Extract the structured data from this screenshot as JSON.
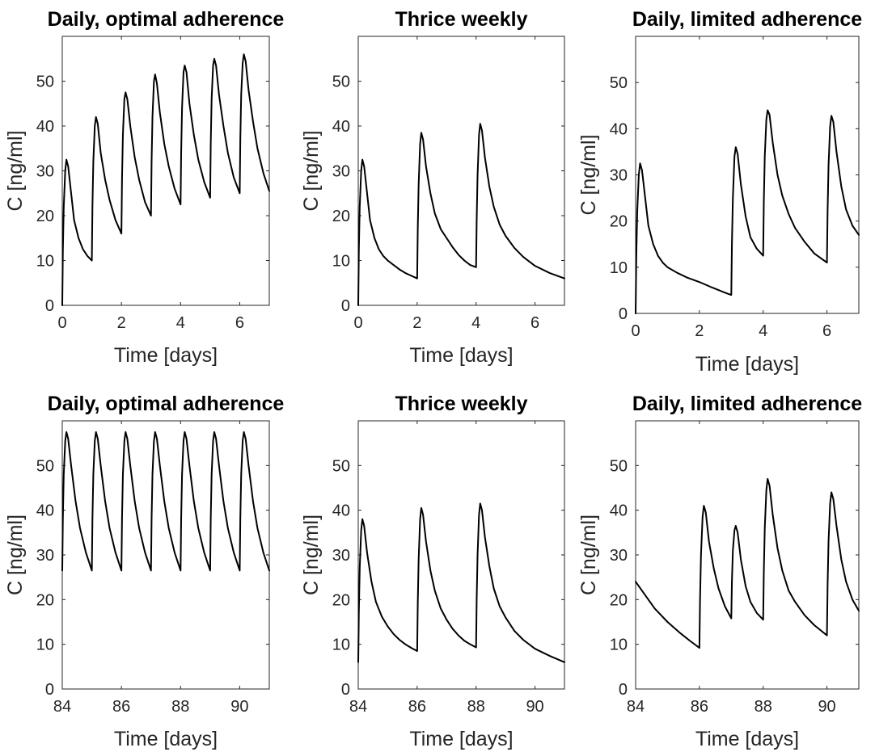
{
  "chart_data": [
    {
      "type": "line",
      "title": "Daily, optimal adherence",
      "xlabel": "Time [days]",
      "ylabel": "C [ng/ml]",
      "xlim": [
        0,
        7
      ],
      "ylim": [
        0,
        60
      ],
      "xticks": [
        "0",
        "2",
        "4",
        "6"
      ],
      "yticks": [
        "0",
        "10",
        "20",
        "30",
        "40",
        "50"
      ],
      "grid": false,
      "series": [
        {
          "x": [
            0,
            0.02,
            0.05,
            0.1,
            0.14,
            0.2,
            0.3,
            0.4,
            0.55,
            0.7,
            0.85,
            1.0,
            1.02,
            1.05,
            1.1,
            1.14,
            1.2,
            1.3,
            1.45,
            1.6,
            1.8,
            2.0,
            2.02,
            2.05,
            2.1,
            2.14,
            2.2,
            2.3,
            2.45,
            2.6,
            2.8,
            3.0,
            3.02,
            3.05,
            3.1,
            3.14,
            3.2,
            3.3,
            3.45,
            3.6,
            3.8,
            4.0,
            4.02,
            4.05,
            4.1,
            4.14,
            4.2,
            4.3,
            4.45,
            4.6,
            4.8,
            5.0,
            5.02,
            5.05,
            5.1,
            5.14,
            5.2,
            5.3,
            5.45,
            5.6,
            5.8,
            6.0,
            6.02,
            6.05,
            6.1,
            6.14,
            6.2,
            6.3,
            6.45,
            6.6,
            6.8,
            7.0
          ],
          "y": [
            0,
            12,
            22,
            30,
            32.5,
            31,
            25,
            19,
            15,
            12.5,
            11,
            10,
            22,
            32,
            40,
            42,
            40.5,
            34,
            28,
            23.5,
            19,
            16,
            28,
            38,
            46,
            47.5,
            46,
            40,
            33,
            28,
            23,
            20,
            32,
            42,
            50,
            51.5,
            49.5,
            43,
            36,
            31,
            26,
            22.5,
            34,
            44,
            52,
            53.5,
            52,
            45,
            38,
            32.5,
            27.5,
            24,
            36,
            46,
            53.5,
            55,
            53.5,
            47,
            40,
            34,
            28.5,
            25,
            37,
            47,
            54,
            56,
            54.5,
            48,
            41,
            35,
            29.5,
            25.5
          ]
        }
      ]
    },
    {
      "type": "line",
      "title": "Thrice weekly",
      "xlabel": "Time [days]",
      "ylabel": "C [ng/ml]",
      "xlim": [
        0,
        7
      ],
      "ylim": [
        0,
        60
      ],
      "xticks": [
        "0",
        "2",
        "4",
        "6"
      ],
      "yticks": [
        "0",
        "10",
        "20",
        "30",
        "40",
        "50"
      ],
      "grid": false,
      "series": [
        {
          "x": [
            0,
            0.02,
            0.05,
            0.1,
            0.14,
            0.2,
            0.3,
            0.4,
            0.55,
            0.7,
            0.85,
            1.0,
            1.2,
            1.4,
            1.6,
            1.8,
            2.0,
            2.02,
            2.05,
            2.1,
            2.14,
            2.2,
            2.3,
            2.45,
            2.6,
            2.8,
            3.0,
            3.2,
            3.4,
            3.6,
            3.8,
            4.0,
            4.02,
            4.05,
            4.1,
            4.14,
            4.2,
            4.3,
            4.45,
            4.6,
            4.8,
            5.0,
            5.3,
            5.6,
            6.0,
            6.5,
            7.0
          ],
          "y": [
            0,
            12,
            22,
            30,
            32.5,
            31,
            25,
            19,
            15,
            12.5,
            11,
            10,
            9,
            8,
            7.2,
            6.6,
            6,
            17,
            27,
            36,
            38.5,
            37,
            31,
            25,
            20.5,
            17,
            15,
            13,
            11.3,
            10,
            9,
            8.5,
            19,
            29,
            38,
            40.5,
            39,
            33,
            26.5,
            22,
            18,
            15.5,
            12.8,
            10.8,
            8.8,
            7.2,
            6
          ]
        }
      ]
    },
    {
      "type": "line",
      "title": "Daily, limited adherence",
      "xlabel": "Time [days]",
      "ylabel": "C [ng/ml]",
      "xlim": [
        0,
        7
      ],
      "ylim": [
        0,
        60
      ],
      "xticks": [
        "0",
        "2",
        "4",
        "6"
      ],
      "yticks": [
        "0",
        "10",
        "20",
        "30",
        "40",
        "50"
      ],
      "grid": false,
      "series": [
        {
          "x": [
            0,
            0.02,
            0.05,
            0.1,
            0.14,
            0.2,
            0.3,
            0.4,
            0.55,
            0.7,
            0.85,
            1.0,
            1.3,
            1.6,
            2.0,
            2.4,
            2.8,
            3.0,
            3.02,
            3.05,
            3.1,
            3.14,
            3.2,
            3.3,
            3.45,
            3.6,
            3.8,
            4.0,
            4.02,
            4.05,
            4.1,
            4.14,
            4.2,
            4.3,
            4.45,
            4.6,
            4.8,
            5.0,
            5.3,
            5.6,
            6.0,
            6.02,
            6.05,
            6.1,
            6.14,
            6.2,
            6.3,
            6.45,
            6.6,
            6.8,
            7.0
          ],
          "y": [
            0,
            12,
            22,
            30,
            32.5,
            31,
            25,
            19,
            15,
            12.5,
            11,
            10,
            8.8,
            7.8,
            6.8,
            5.6,
            4.5,
            4,
            15,
            25,
            34,
            36,
            34.5,
            28,
            21,
            16.5,
            14,
            12.5,
            24,
            34,
            42,
            44,
            43,
            37,
            30,
            25.5,
            21.5,
            18.5,
            15.5,
            13,
            11,
            22,
            32,
            40.5,
            42.8,
            41.5,
            35,
            27.5,
            22.5,
            19,
            17
          ]
        }
      ]
    },
    {
      "type": "line",
      "title": "Daily, optimal adherence",
      "xlabel": "Time [days]",
      "ylabel": "C [ng/ml]",
      "xlim": [
        84,
        91
      ],
      "ylim": [
        0,
        60
      ],
      "xticks": [
        "84",
        "86",
        "88",
        "90"
      ],
      "yticks": [
        "0",
        "10",
        "20",
        "30",
        "40",
        "50"
      ],
      "grid": false,
      "series": [
        {
          "x": [
            84.0,
            84.02,
            84.05,
            84.1,
            84.14,
            84.2,
            84.3,
            84.45,
            84.6,
            84.8,
            85.0,
            85.02,
            85.05,
            85.1,
            85.14,
            85.2,
            85.3,
            85.45,
            85.6,
            85.8,
            86.0,
            86.02,
            86.05,
            86.1,
            86.14,
            86.2,
            86.3,
            86.45,
            86.6,
            86.8,
            87.0,
            87.02,
            87.05,
            87.1,
            87.14,
            87.2,
            87.3,
            87.45,
            87.6,
            87.8,
            88.0,
            88.02,
            88.05,
            88.1,
            88.14,
            88.2,
            88.3,
            88.45,
            88.6,
            88.8,
            89.0,
            89.02,
            89.05,
            89.1,
            89.14,
            89.2,
            89.3,
            89.45,
            89.6,
            89.8,
            90.0,
            90.02,
            90.05,
            90.1,
            90.14,
            90.2,
            90.3,
            90.45,
            90.6,
            90.8,
            91.0
          ],
          "y": [
            26.5,
            38,
            48,
            55.5,
            57.5,
            56,
            50,
            42,
            36,
            30.5,
            26.5,
            38,
            48,
            55.5,
            57.5,
            56,
            50,
            42,
            36,
            30.5,
            26.5,
            38,
            48,
            55.5,
            57.5,
            56,
            50,
            42,
            36,
            30.5,
            26.5,
            38,
            48,
            55.5,
            57.5,
            56,
            50,
            42,
            36,
            30.5,
            26.5,
            38,
            48,
            55.5,
            57.5,
            56,
            50,
            42,
            36,
            30.5,
            26.5,
            38,
            48,
            55.5,
            57.5,
            56,
            50,
            42,
            36,
            30.5,
            26.5,
            38,
            48,
            55.5,
            57.5,
            56,
            50,
            42,
            36,
            30.5,
            26.5
          ]
        }
      ]
    },
    {
      "type": "line",
      "title": "Thrice weekly",
      "xlabel": "Time [days]",
      "ylabel": "C [ng/ml]",
      "xlim": [
        84,
        91
      ],
      "ylim": [
        0,
        60
      ],
      "xticks": [
        "84",
        "86",
        "88",
        "90"
      ],
      "yticks": [
        "0",
        "10",
        "20",
        "30",
        "40",
        "50"
      ],
      "grid": false,
      "series": [
        {
          "x": [
            84.0,
            84.02,
            84.05,
            84.1,
            84.14,
            84.2,
            84.3,
            84.45,
            84.6,
            84.8,
            85.0,
            85.2,
            85.4,
            85.6,
            85.8,
            86.0,
            86.02,
            86.05,
            86.1,
            86.14,
            86.2,
            86.3,
            86.45,
            86.6,
            86.8,
            87.0,
            87.2,
            87.4,
            87.6,
            87.8,
            88.0,
            88.02,
            88.05,
            88.1,
            88.14,
            88.2,
            88.3,
            88.45,
            88.6,
            88.8,
            89.0,
            89.3,
            89.6,
            90.0,
            90.5,
            91.0
          ],
          "y": [
            6,
            17,
            27,
            35.5,
            38,
            36.5,
            30.5,
            24,
            19.5,
            16.2,
            14,
            12.3,
            11,
            10,
            9.2,
            8.5,
            19,
            29,
            38,
            40.5,
            39,
            33,
            26.5,
            22,
            18,
            15.5,
            13.5,
            12,
            10.8,
            10,
            9.3,
            20,
            30,
            39,
            41.5,
            40,
            34,
            27.5,
            22.5,
            18.5,
            16,
            13,
            11,
            9,
            7.4,
            6
          ]
        }
      ]
    },
    {
      "type": "line",
      "title": "Daily, limited adherence",
      "xlabel": "Time [days]",
      "ylabel": "C [ng/ml]",
      "xlim": [
        84,
        91
      ],
      "ylim": [
        0,
        60
      ],
      "xticks": [
        "84",
        "86",
        "88",
        "90"
      ],
      "yticks": [
        "0",
        "10",
        "20",
        "30",
        "40",
        "50"
      ],
      "grid": false,
      "series": [
        {
          "x": [
            84.0,
            84.3,
            84.6,
            85.0,
            85.4,
            85.7,
            86.0,
            86.02,
            86.05,
            86.1,
            86.14,
            86.2,
            86.3,
            86.45,
            86.6,
            86.8,
            87.0,
            87.02,
            87.05,
            87.1,
            87.14,
            87.2,
            87.3,
            87.45,
            87.6,
            87.8,
            88.0,
            88.02,
            88.05,
            88.1,
            88.14,
            88.2,
            88.3,
            88.45,
            88.6,
            88.8,
            89.0,
            89.3,
            89.6,
            90.0,
            90.02,
            90.05,
            90.1,
            90.14,
            90.2,
            90.3,
            90.45,
            90.6,
            90.8,
            91.0
          ],
          "y": [
            24,
            21,
            18,
            15,
            12.5,
            10.8,
            9.2,
            20,
            30,
            38.5,
            41,
            39.5,
            33,
            27,
            22.5,
            18.5,
            15.8,
            24,
            31,
            35.5,
            36.5,
            35,
            29,
            23,
            19.5,
            17,
            15.5,
            26,
            36,
            44.5,
            47,
            45.5,
            39,
            31.5,
            26.5,
            22,
            19.5,
            16.5,
            14.3,
            12,
            23,
            33,
            41.5,
            44,
            42.5,
            36.5,
            29,
            24,
            20,
            17.5
          ]
        }
      ]
    }
  ]
}
